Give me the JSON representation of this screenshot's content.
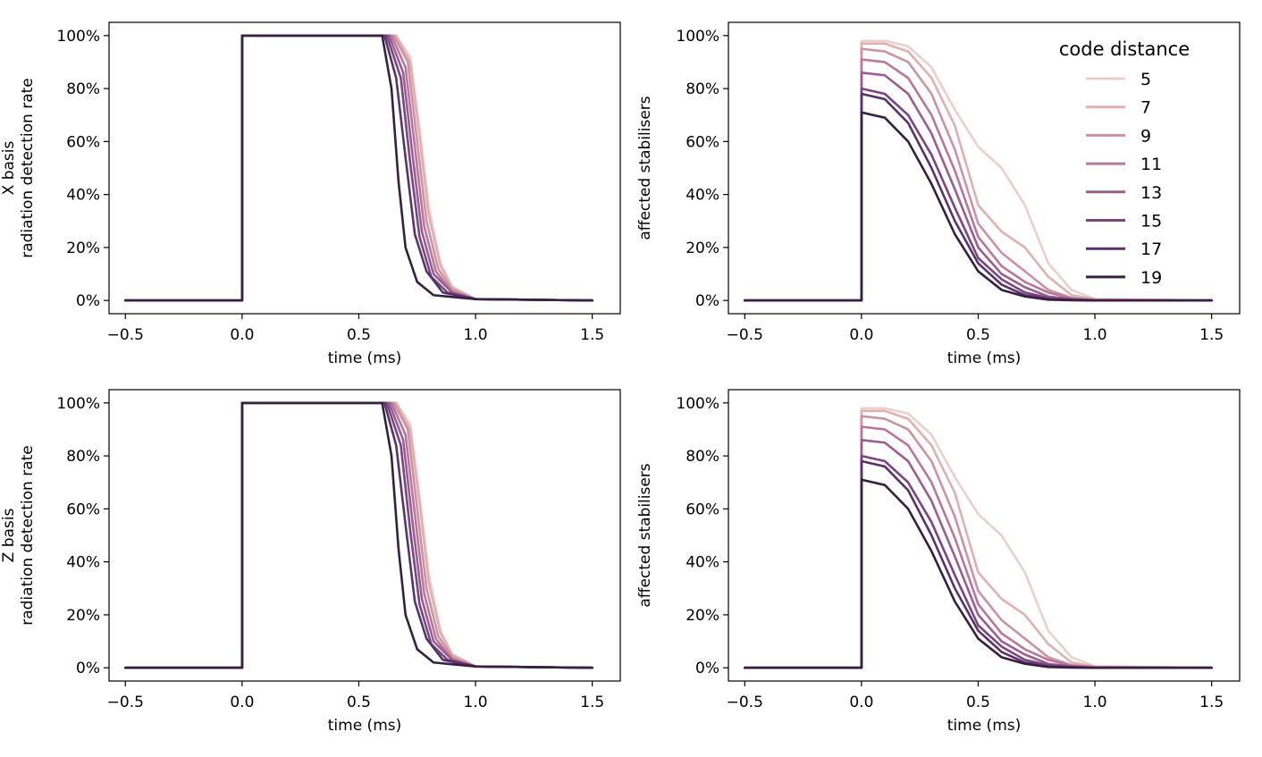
{
  "legend": {
    "title": "code distance",
    "entries": [
      "5",
      "7",
      "9",
      "11",
      "13",
      "15",
      "17",
      "19"
    ],
    "colors": [
      "#ebcfcb",
      "#deb0b0",
      "#cd92a1",
      "#b8769a",
      "#9c5c91",
      "#7c4582",
      "#5a326b",
      "#35213f"
    ]
  },
  "chart_data": [
    {
      "type": "line",
      "ylabel_lines": [
        "X basis",
        "radiation detection rate"
      ],
      "xlabel": "time (ms)",
      "xlim": [
        -0.57,
        1.62
      ],
      "ylim": [
        -5,
        105
      ],
      "xticks": [
        -0.5,
        0.0,
        0.5,
        1.0,
        1.5
      ],
      "xtick_labels": [
        "−0.5",
        "0.0",
        "0.5",
        "1.0",
        "1.5"
      ],
      "yticks": [
        0,
        20,
        40,
        60,
        80,
        100
      ],
      "ytick_labels": [
        "0%",
        "20%",
        "40%",
        "60%",
        "80%",
        "100%"
      ],
      "grid": false,
      "series": [
        {
          "name": "5",
          "x": [
            -0.5,
            0.0,
            0.0,
            0.66,
            0.72,
            0.76,
            0.8,
            0.85,
            0.9,
            1.0,
            1.5
          ],
          "values": [
            0,
            0,
            100,
            100,
            92,
            65,
            35,
            14,
            5,
            0.5,
            0
          ]
        },
        {
          "name": "7",
          "x": [
            -0.5,
            0.0,
            0.0,
            0.66,
            0.72,
            0.76,
            0.8,
            0.85,
            0.9,
            1.0,
            1.5
          ],
          "values": [
            0,
            0,
            100,
            100,
            90,
            62,
            32,
            13,
            5,
            0.5,
            0
          ]
        },
        {
          "name": "9",
          "x": [
            -0.5,
            0.0,
            0.0,
            0.65,
            0.71,
            0.75,
            0.79,
            0.84,
            0.9,
            1.0,
            1.5
          ],
          "values": [
            0,
            0,
            100,
            100,
            90,
            60,
            30,
            12,
            4,
            0.5,
            0
          ]
        },
        {
          "name": "11",
          "x": [
            -0.5,
            0.0,
            0.0,
            0.64,
            0.7,
            0.74,
            0.78,
            0.83,
            0.9,
            1.0,
            1.5
          ],
          "values": [
            0,
            0,
            100,
            100,
            88,
            58,
            28,
            11,
            3,
            0.5,
            0
          ]
        },
        {
          "name": "13",
          "x": [
            -0.5,
            0.0,
            0.0,
            0.63,
            0.69,
            0.73,
            0.77,
            0.82,
            0.9,
            1.0,
            1.5
          ],
          "values": [
            0,
            0,
            100,
            100,
            86,
            55,
            26,
            10,
            3,
            0.5,
            0
          ]
        },
        {
          "name": "15",
          "x": [
            -0.5,
            0.0,
            0.0,
            0.62,
            0.68,
            0.72,
            0.76,
            0.81,
            0.88,
            1.0,
            1.5
          ],
          "values": [
            0,
            0,
            100,
            100,
            84,
            52,
            24,
            9,
            3,
            0.5,
            0
          ]
        },
        {
          "name": "17",
          "x": [
            -0.5,
            0.0,
            0.0,
            0.61,
            0.66,
            0.7,
            0.74,
            0.79,
            0.86,
            1.0,
            1.5
          ],
          "values": [
            0,
            0,
            100,
            100,
            84,
            54,
            25,
            11,
            3,
            0.5,
            0
          ]
        },
        {
          "name": "19",
          "x": [
            -0.5,
            0.0,
            0.0,
            0.6,
            0.64,
            0.67,
            0.7,
            0.75,
            0.82,
            1.0,
            1.5
          ],
          "values": [
            0,
            0,
            100,
            100,
            80,
            45,
            20,
            7,
            2,
            0.5,
            0
          ]
        }
      ]
    },
    {
      "type": "line",
      "ylabel_lines": [
        "affected stabilisers"
      ],
      "xlabel": "time (ms)",
      "xlim": [
        -0.57,
        1.62
      ],
      "ylim": [
        -5,
        105
      ],
      "xticks": [
        -0.5,
        0.0,
        0.5,
        1.0,
        1.5
      ],
      "xtick_labels": [
        "−0.5",
        "0.0",
        "0.5",
        "1.0",
        "1.5"
      ],
      "yticks": [
        0,
        20,
        40,
        60,
        80,
        100
      ],
      "ytick_labels": [
        "0%",
        "20%",
        "40%",
        "60%",
        "80%",
        "100%"
      ],
      "grid": false,
      "legend_position": "top-right",
      "series": [
        {
          "name": "5",
          "x": [
            -0.5,
            0.0,
            0.0,
            0.1,
            0.2,
            0.3,
            0.4,
            0.5,
            0.6,
            0.7,
            0.8,
            0.9,
            1.0,
            1.5
          ],
          "values": [
            0,
            0,
            98,
            98,
            96,
            88,
            72,
            58,
            50,
            36,
            14,
            4,
            0.5,
            0
          ]
        },
        {
          "name": "7",
          "x": [
            -0.5,
            0.0,
            0.0,
            0.1,
            0.2,
            0.3,
            0.4,
            0.5,
            0.6,
            0.7,
            0.8,
            0.9,
            1.0,
            1.5
          ],
          "values": [
            0,
            0,
            97,
            97,
            94,
            84,
            66,
            36,
            26,
            20,
            9,
            2,
            0.5,
            0
          ]
        },
        {
          "name": "9",
          "x": [
            -0.5,
            0.0,
            0.0,
            0.1,
            0.2,
            0.3,
            0.4,
            0.5,
            0.6,
            0.7,
            0.8,
            0.9,
            1.0,
            1.5
          ],
          "values": [
            0,
            0,
            95,
            94,
            90,
            78,
            57,
            29,
            18,
            11,
            4,
            1,
            0.2,
            0
          ]
        },
        {
          "name": "11",
          "x": [
            -0.5,
            0.0,
            0.0,
            0.1,
            0.2,
            0.3,
            0.4,
            0.5,
            0.6,
            0.7,
            0.8,
            0.9,
            1.0,
            1.5
          ],
          "values": [
            0,
            0,
            91,
            90,
            84,
            70,
            49,
            24,
            13,
            7,
            3,
            0.8,
            0.2,
            0
          ]
        },
        {
          "name": "13",
          "x": [
            -0.5,
            0.0,
            0.0,
            0.1,
            0.2,
            0.3,
            0.4,
            0.5,
            0.6,
            0.7,
            0.8,
            0.9,
            1.0,
            1.5
          ],
          "values": [
            0,
            0,
            86,
            85,
            78,
            63,
            42,
            20,
            10,
            5,
            1.5,
            0.5,
            0.1,
            0
          ]
        },
        {
          "name": "15",
          "x": [
            -0.5,
            0.0,
            0.0,
            0.1,
            0.2,
            0.3,
            0.4,
            0.5,
            0.6,
            0.7,
            0.8,
            0.9,
            1.0,
            1.5
          ],
          "values": [
            0,
            0,
            80,
            78,
            70,
            55,
            35,
            16,
            8,
            3,
            1,
            0.3,
            0,
            0
          ]
        },
        {
          "name": "17",
          "x": [
            -0.5,
            0.0,
            0.0,
            0.1,
            0.2,
            0.3,
            0.4,
            0.5,
            0.6,
            0.7,
            0.8,
            0.9,
            1.0,
            1.5
          ],
          "values": [
            0,
            0,
            78,
            76,
            67,
            50,
            30,
            14,
            6,
            2,
            0.5,
            0.2,
            0,
            0
          ]
        },
        {
          "name": "19",
          "x": [
            -0.5,
            0.0,
            0.0,
            0.1,
            0.2,
            0.3,
            0.4,
            0.5,
            0.6,
            0.7,
            0.8,
            0.9,
            1.0,
            1.5
          ],
          "values": [
            0,
            0,
            71,
            69,
            60,
            44,
            25,
            11,
            4,
            1.5,
            0.3,
            0.1,
            0,
            0
          ]
        }
      ]
    },
    {
      "type": "line",
      "ylabel_lines": [
        "Z basis",
        "radiation detection rate"
      ],
      "xlabel": "time (ms)",
      "xlim": [
        -0.57,
        1.62
      ],
      "ylim": [
        -5,
        105
      ],
      "xticks": [
        -0.5,
        0.0,
        0.5,
        1.0,
        1.5
      ],
      "xtick_labels": [
        "−0.5",
        "0.0",
        "0.5",
        "1.0",
        "1.5"
      ],
      "yticks": [
        0,
        20,
        40,
        60,
        80,
        100
      ],
      "ytick_labels": [
        "0%",
        "20%",
        "40%",
        "60%",
        "80%",
        "100%"
      ],
      "grid": false,
      "series": [
        {
          "name": "5",
          "x": [
            -0.5,
            0.0,
            0.0,
            0.66,
            0.72,
            0.76,
            0.8,
            0.85,
            0.9,
            1.0,
            1.5
          ],
          "values": [
            0,
            0,
            100,
            100,
            92,
            65,
            35,
            14,
            5,
            0.5,
            0
          ]
        },
        {
          "name": "7",
          "x": [
            -0.5,
            0.0,
            0.0,
            0.66,
            0.72,
            0.76,
            0.8,
            0.85,
            0.9,
            1.0,
            1.5
          ],
          "values": [
            0,
            0,
            100,
            100,
            90,
            62,
            32,
            13,
            5,
            0.5,
            0
          ]
        },
        {
          "name": "9",
          "x": [
            -0.5,
            0.0,
            0.0,
            0.65,
            0.71,
            0.75,
            0.79,
            0.84,
            0.9,
            1.0,
            1.5
          ],
          "values": [
            0,
            0,
            100,
            100,
            90,
            60,
            30,
            12,
            4,
            0.5,
            0
          ]
        },
        {
          "name": "11",
          "x": [
            -0.5,
            0.0,
            0.0,
            0.64,
            0.7,
            0.74,
            0.78,
            0.83,
            0.9,
            1.0,
            1.5
          ],
          "values": [
            0,
            0,
            100,
            100,
            88,
            58,
            28,
            11,
            3,
            0.5,
            0
          ]
        },
        {
          "name": "13",
          "x": [
            -0.5,
            0.0,
            0.0,
            0.63,
            0.69,
            0.73,
            0.77,
            0.82,
            0.9,
            1.0,
            1.5
          ],
          "values": [
            0,
            0,
            100,
            100,
            86,
            55,
            26,
            10,
            3,
            0.5,
            0
          ]
        },
        {
          "name": "15",
          "x": [
            -0.5,
            0.0,
            0.0,
            0.62,
            0.68,
            0.72,
            0.76,
            0.81,
            0.88,
            1.0,
            1.5
          ],
          "values": [
            0,
            0,
            100,
            100,
            84,
            52,
            24,
            9,
            3,
            0.5,
            0
          ]
        },
        {
          "name": "17",
          "x": [
            -0.5,
            0.0,
            0.0,
            0.61,
            0.66,
            0.7,
            0.74,
            0.79,
            0.86,
            1.0,
            1.5
          ],
          "values": [
            0,
            0,
            100,
            100,
            84,
            54,
            25,
            11,
            3,
            0.5,
            0
          ]
        },
        {
          "name": "19",
          "x": [
            -0.5,
            0.0,
            0.0,
            0.6,
            0.64,
            0.67,
            0.7,
            0.75,
            0.82,
            1.0,
            1.5
          ],
          "values": [
            0,
            0,
            100,
            100,
            80,
            45,
            20,
            7,
            2,
            0.5,
            0
          ]
        }
      ]
    },
    {
      "type": "line",
      "ylabel_lines": [
        "affected stabilisers"
      ],
      "xlabel": "time (ms)",
      "xlim": [
        -0.57,
        1.62
      ],
      "ylim": [
        -5,
        105
      ],
      "xticks": [
        -0.5,
        0.0,
        0.5,
        1.0,
        1.5
      ],
      "xtick_labels": [
        "−0.5",
        "0.0",
        "0.5",
        "1.0",
        "1.5"
      ],
      "yticks": [
        0,
        20,
        40,
        60,
        80,
        100
      ],
      "ytick_labels": [
        "0%",
        "20%",
        "40%",
        "60%",
        "80%",
        "100%"
      ],
      "grid": false,
      "series": [
        {
          "name": "5",
          "x": [
            -0.5,
            0.0,
            0.0,
            0.1,
            0.2,
            0.3,
            0.4,
            0.5,
            0.6,
            0.7,
            0.8,
            0.9,
            1.0,
            1.5
          ],
          "values": [
            0,
            0,
            98,
            98,
            96,
            88,
            72,
            58,
            50,
            36,
            14,
            4,
            0.5,
            0
          ]
        },
        {
          "name": "7",
          "x": [
            -0.5,
            0.0,
            0.0,
            0.1,
            0.2,
            0.3,
            0.4,
            0.5,
            0.6,
            0.7,
            0.8,
            0.9,
            1.0,
            1.5
          ],
          "values": [
            0,
            0,
            97,
            97,
            94,
            84,
            66,
            36,
            26,
            20,
            9,
            2,
            0.5,
            0
          ]
        },
        {
          "name": "9",
          "x": [
            -0.5,
            0.0,
            0.0,
            0.1,
            0.2,
            0.3,
            0.4,
            0.5,
            0.6,
            0.7,
            0.8,
            0.9,
            1.0,
            1.5
          ],
          "values": [
            0,
            0,
            95,
            94,
            90,
            78,
            57,
            29,
            18,
            11,
            4,
            1,
            0.2,
            0
          ]
        },
        {
          "name": "11",
          "x": [
            -0.5,
            0.0,
            0.0,
            0.1,
            0.2,
            0.3,
            0.4,
            0.5,
            0.6,
            0.7,
            0.8,
            0.9,
            1.0,
            1.5
          ],
          "values": [
            0,
            0,
            91,
            90,
            84,
            70,
            49,
            24,
            13,
            7,
            3,
            0.8,
            0.2,
            0
          ]
        },
        {
          "name": "13",
          "x": [
            -0.5,
            0.0,
            0.0,
            0.1,
            0.2,
            0.3,
            0.4,
            0.5,
            0.6,
            0.7,
            0.8,
            0.9,
            1.0,
            1.5
          ],
          "values": [
            0,
            0,
            86,
            85,
            78,
            63,
            42,
            20,
            10,
            5,
            1.5,
            0.5,
            0.1,
            0
          ]
        },
        {
          "name": "15",
          "x": [
            -0.5,
            0.0,
            0.0,
            0.1,
            0.2,
            0.3,
            0.4,
            0.5,
            0.6,
            0.7,
            0.8,
            0.9,
            1.0,
            1.5
          ],
          "values": [
            0,
            0,
            80,
            78,
            70,
            55,
            35,
            16,
            8,
            3,
            1,
            0.3,
            0,
            0
          ]
        },
        {
          "name": "17",
          "x": [
            -0.5,
            0.0,
            0.0,
            0.1,
            0.2,
            0.3,
            0.4,
            0.5,
            0.6,
            0.7,
            0.8,
            0.9,
            1.0,
            1.5
          ],
          "values": [
            0,
            0,
            78,
            76,
            67,
            50,
            30,
            14,
            6,
            2,
            0.5,
            0.2,
            0,
            0
          ]
        },
        {
          "name": "19",
          "x": [
            -0.5,
            0.0,
            0.0,
            0.1,
            0.2,
            0.3,
            0.4,
            0.5,
            0.6,
            0.7,
            0.8,
            0.9,
            1.0,
            1.5
          ],
          "values": [
            0,
            0,
            71,
            69,
            60,
            44,
            25,
            11,
            4,
            1.5,
            0.3,
            0.1,
            0,
            0
          ]
        }
      ]
    }
  ]
}
